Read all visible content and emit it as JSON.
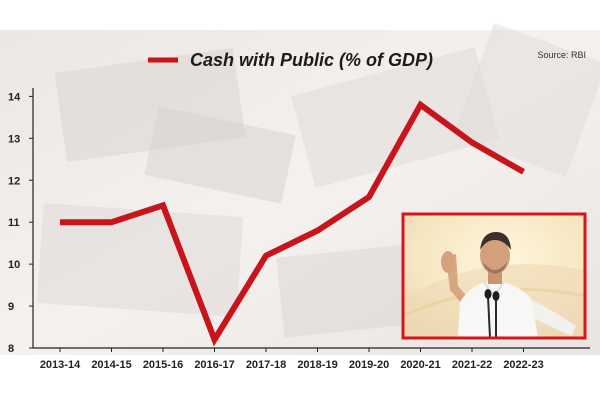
{
  "legend": {
    "label": "Cash with Public (% of GDP)"
  },
  "source": "Source: RBI",
  "colors": {
    "line": "#c8141b",
    "axis": "#222222",
    "inset_border": "#d6161c"
  },
  "inset_photo": {
    "depicts": "man-speaking-at-microphones"
  },
  "chart_data": {
    "type": "line",
    "title": "",
    "xlabel": "",
    "ylabel": "",
    "categories": [
      "2013-14",
      "2014-15",
      "2015-16",
      "2016-17",
      "2017-18",
      "2018-19",
      "2019-20",
      "2020-21",
      "2021-22",
      "2022-23"
    ],
    "series": [
      {
        "name": "Cash with Public (% of GDP)",
        "values": [
          11.0,
          11.0,
          11.4,
          8.2,
          10.2,
          10.8,
          11.6,
          13.8,
          12.9,
          12.2
        ]
      }
    ],
    "yticks": [
      8,
      9,
      10,
      11,
      12,
      13,
      14
    ],
    "ylim": [
      8,
      14.2
    ],
    "grid": false,
    "legend_position": "top"
  }
}
